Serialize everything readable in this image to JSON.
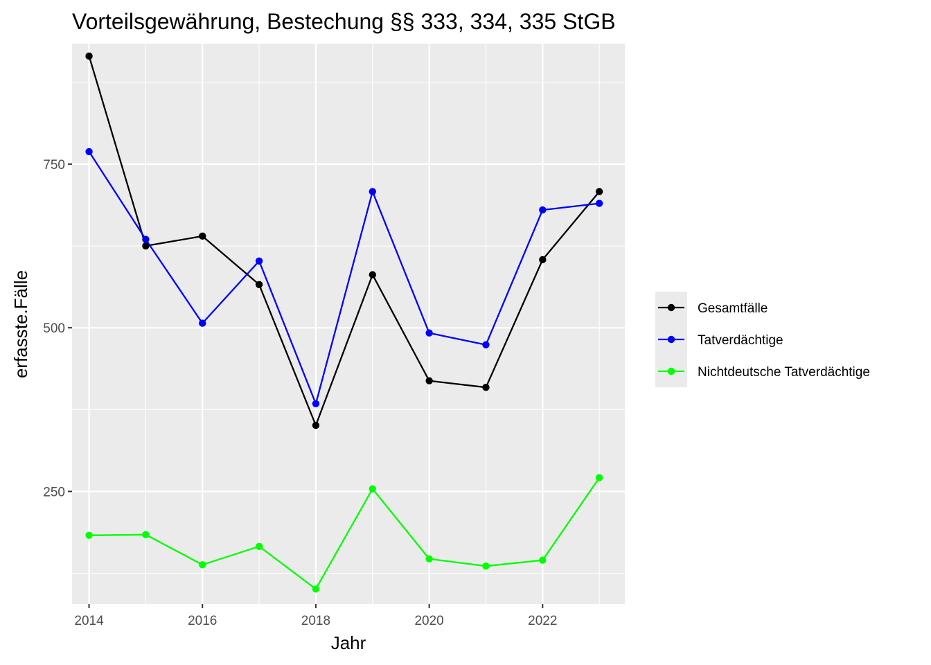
{
  "chart_data": {
    "type": "line",
    "title": "Vorteilsgewährung, Bestechung §§ 333, 334, 335 StGB",
    "xlabel": "Jahr",
    "ylabel": "erfasste.Fälle",
    "x": [
      2014,
      2015,
      2016,
      2017,
      2018,
      2019,
      2020,
      2021,
      2022,
      2023
    ],
    "xlim": [
      2013.7,
      2023.45
    ],
    "ylim": [
      78,
      934
    ],
    "x_ticks": [
      2014,
      2016,
      2018,
      2020,
      2022
    ],
    "x_tick_labels": [
      "2014",
      "2016",
      "2018",
      "2020",
      "2022"
    ],
    "y_ticks": [
      250,
      500,
      750
    ],
    "y_tick_labels": [
      "250",
      "500",
      "750"
    ],
    "grid": true,
    "legend_position": "right",
    "series": [
      {
        "name": "Gesamtfälle",
        "color": "#000000",
        "values": [
          915,
          625,
          640,
          566,
          351,
          581,
          419,
          409,
          604,
          708
        ]
      },
      {
        "name": "Tatverdächtige",
        "color": "#0000ff",
        "values": [
          769,
          635,
          507,
          602,
          384,
          708,
          492,
          474,
          680,
          690
        ]
      },
      {
        "name": "Nichtdeutsche Tatverdächtige",
        "color": "#00ff00",
        "values": [
          183,
          184,
          138,
          166,
          101,
          254,
          147,
          136,
          145,
          271
        ]
      }
    ]
  }
}
